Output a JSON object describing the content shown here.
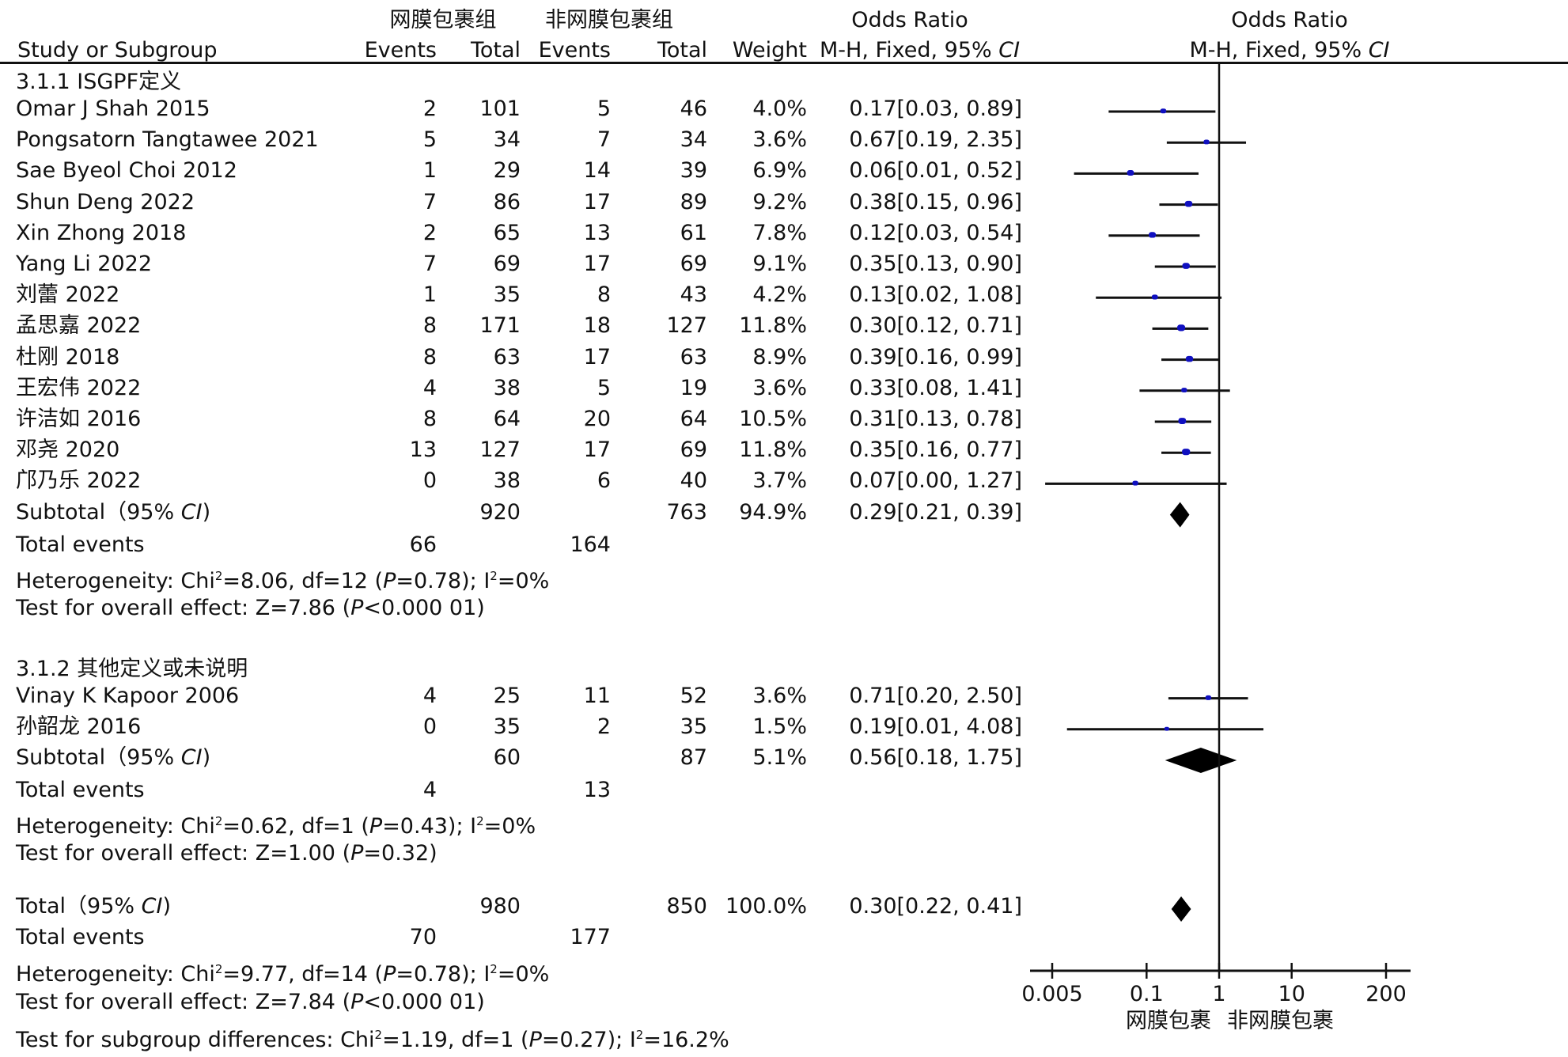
{
  "header": {
    "group1": "网膜包裹组",
    "group2": "非网膜包裹组",
    "or_title": "Odds Ratio",
    "or_title_plot": "Odds Ratio",
    "study_col": "Study or Subgroup",
    "events1": "Events",
    "total1": "Total",
    "events2": "Events",
    "total2": "Total",
    "weight": "Weight",
    "method": "M-H, Fixed, 95% ",
    "method_ci": "CI",
    "method_plot": "M-H, Fixed, 95% ",
    "method_plot_ci": "CI"
  },
  "chart_data": {
    "type": "forest",
    "title": "Odds Ratio M-H, Fixed, 95% CI",
    "xscale": "log",
    "xlim": [
      0.005,
      200
    ],
    "xticks": [
      "0.005",
      "0.1",
      "1",
      "10",
      "200"
    ],
    "xtick_values": [
      0.005,
      0.1,
      1,
      10,
      200
    ],
    "favours_left": "网膜包裹",
    "favours_right": "非网膜包裹",
    "subgroups": [
      {
        "label": "3.1.1 ISGPF定义",
        "studies": [
          {
            "name": "Omar J Shah 2015",
            "e1": "2",
            "t1": "101",
            "e2": "5",
            "t2": "46",
            "weight": "4.0%",
            "or_text": "0.17[0.03, 0.89]",
            "or": 0.17,
            "lo": 0.03,
            "hi": 0.89,
            "w": 4.0
          },
          {
            "name": "Pongsatorn Tangtawee 2021",
            "e1": "5",
            "t1": "34",
            "e2": "7",
            "t2": "34",
            "weight": "3.6%",
            "or_text": "0.67[0.19, 2.35]",
            "or": 0.67,
            "lo": 0.19,
            "hi": 2.35,
            "w": 3.6
          },
          {
            "name": "Sae Byeol Choi 2012",
            "e1": "1",
            "t1": "29",
            "e2": "14",
            "t2": "39",
            "weight": "6.9%",
            "or_text": "0.06[0.01, 0.52]",
            "or": 0.06,
            "lo": 0.01,
            "hi": 0.52,
            "w": 6.9
          },
          {
            "name": "Shun Deng 2022",
            "e1": "7",
            "t1": "86",
            "e2": "17",
            "t2": "89",
            "weight": "9.2%",
            "or_text": "0.38[0.15, 0.96]",
            "or": 0.38,
            "lo": 0.15,
            "hi": 0.96,
            "w": 9.2
          },
          {
            "name": "Xin Zhong 2018",
            "e1": "2",
            "t1": "65",
            "e2": "13",
            "t2": "61",
            "weight": "7.8%",
            "or_text": "0.12[0.03, 0.54]",
            "or": 0.12,
            "lo": 0.03,
            "hi": 0.54,
            "w": 7.8
          },
          {
            "name": "Yang Li 2022",
            "e1": "7",
            "t1": "69",
            "e2": "17",
            "t2": "69",
            "weight": "9.1%",
            "or_text": "0.35[0.13, 0.90]",
            "or": 0.35,
            "lo": 0.13,
            "hi": 0.9,
            "w": 9.1
          },
          {
            "name": "刘蕾 2022",
            "e1": "1",
            "t1": "35",
            "e2": "8",
            "t2": "43",
            "weight": "4.2%",
            "or_text": "0.13[0.02, 1.08]",
            "or": 0.13,
            "lo": 0.02,
            "hi": 1.08,
            "w": 4.2
          },
          {
            "name": "孟思嘉 2022",
            "e1": "8",
            "t1": "171",
            "e2": "18",
            "t2": "127",
            "weight": "11.8%",
            "or_text": "0.30[0.12, 0.71]",
            "or": 0.3,
            "lo": 0.12,
            "hi": 0.71,
            "w": 11.8
          },
          {
            "name": "杜刚 2018",
            "e1": "8",
            "t1": "63",
            "e2": "17",
            "t2": "63",
            "weight": "8.9%",
            "or_text": "0.39[0.16, 0.99]",
            "or": 0.39,
            "lo": 0.16,
            "hi": 0.99,
            "w": 8.9
          },
          {
            "name": "王宏伟 2022",
            "e1": "4",
            "t1": "38",
            "e2": "5",
            "t2": "19",
            "weight": "3.6%",
            "or_text": "0.33[0.08, 1.41]",
            "or": 0.33,
            "lo": 0.08,
            "hi": 1.41,
            "w": 3.6
          },
          {
            "name": "许洁如 2016",
            "e1": "8",
            "t1": "64",
            "e2": "20",
            "t2": "64",
            "weight": "10.5%",
            "or_text": "0.31[0.13, 0.78]",
            "or": 0.31,
            "lo": 0.13,
            "hi": 0.78,
            "w": 10.5
          },
          {
            "name": "邓尧 2020",
            "e1": "13",
            "t1": "127",
            "e2": "17",
            "t2": "69",
            "weight": "11.8%",
            "or_text": "0.35[0.16, 0.77]",
            "or": 0.35,
            "lo": 0.16,
            "hi": 0.77,
            "w": 11.8
          },
          {
            "name": "邝乃乐 2022",
            "e1": "0",
            "t1": "38",
            "e2": "6",
            "t2": "40",
            "weight": "3.7%",
            "or_text": "0.07[0.00, 1.27]",
            "or": 0.07,
            "lo": 0.004,
            "hi": 1.27,
            "w": 3.7
          }
        ],
        "subtotal": {
          "label": "Subtotal（95% ",
          "label_ci": "CI",
          "label_end": ")",
          "t1": "920",
          "t2": "763",
          "weight": "94.9%",
          "or_text": "0.29[0.21, 0.39]",
          "or": 0.29,
          "lo": 0.21,
          "hi": 0.39
        },
        "total_events": {
          "label": "Total events",
          "e1": "66",
          "e2": "164"
        },
        "heterogeneity": "Heterogeneity: Chi²=8.06, df=12 (P=0.78); I²=0%",
        "overall_effect": "Test for overall effect: Z=7.86 (P<0.000 01)"
      },
      {
        "label": "3.1.2 其他定义或未说明",
        "studies": [
          {
            "name": "Vinay K Kapoor 2006",
            "e1": "4",
            "t1": "25",
            "e2": "11",
            "t2": "52",
            "weight": "3.6%",
            "or_text": "0.71[0.20, 2.50]",
            "or": 0.71,
            "lo": 0.2,
            "hi": 2.5,
            "w": 3.6
          },
          {
            "name": "孙韶龙 2016",
            "e1": "0",
            "t1": "35",
            "e2": "2",
            "t2": "35",
            "weight": "1.5%",
            "or_text": "0.19[0.01, 4.08]",
            "or": 0.19,
            "lo": 0.008,
            "hi": 4.08,
            "w": 1.5
          }
        ],
        "subtotal": {
          "label": "Subtotal（95% ",
          "label_ci": "CI",
          "label_end": ")",
          "t1": "60",
          "t2": "87",
          "weight": "5.1%",
          "or_text": "0.56[0.18, 1.75]",
          "or": 0.56,
          "lo": 0.18,
          "hi": 1.75
        },
        "total_events": {
          "label": "Total events",
          "e1": "4",
          "e2": "13"
        },
        "heterogeneity": "Heterogeneity: Chi²=0.62, df=1 (P=0.43); I²=0%",
        "overall_effect": "Test for overall effect: Z=1.00 (P=0.32)"
      }
    ],
    "total": {
      "label": "Total（95% ",
      "label_ci": "CI",
      "label_end": ")",
      "t1": "980",
      "t2": "850",
      "weight": "100.0%",
      "or_text": "0.30[0.22, 0.41]",
      "or": 0.3,
      "lo": 0.22,
      "hi": 0.41
    },
    "total_events": {
      "label": "Total events",
      "e1": "70",
      "e2": "177"
    },
    "heterogeneity": "Heterogeneity: Chi²=9.77, df=14 (P=0.78); I²=0%",
    "overall_effect": "Test for overall effect: Z=7.84 (P<0.000 01)",
    "subgroup_diff": "Test for subgroup differences: Chi²=1.19, df=1 (P=0.27); I²=16.2%"
  }
}
